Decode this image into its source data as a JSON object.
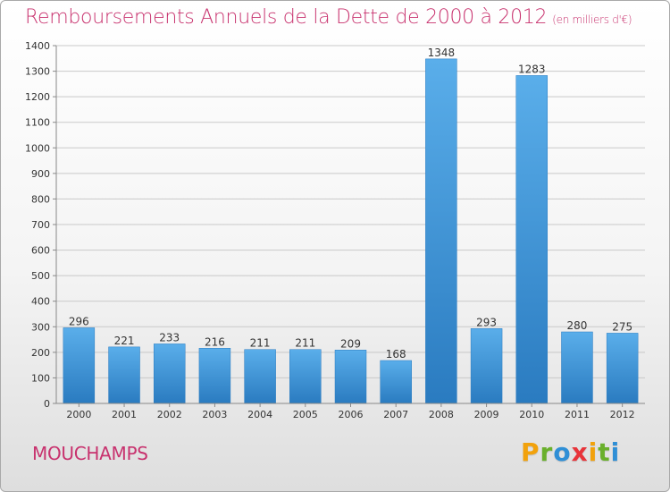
{
  "chart_data": {
    "type": "bar",
    "title": "Remboursements Annuels de la Dette de 2000 à 2012",
    "subtitle": "(en milliers d'€)",
    "categories": [
      "2000",
      "2001",
      "2002",
      "2003",
      "2004",
      "2005",
      "2006",
      "2007",
      "2008",
      "2009",
      "2010",
      "2011",
      "2012"
    ],
    "values": [
      296,
      221,
      233,
      216,
      211,
      211,
      209,
      168,
      1348,
      293,
      1283,
      280,
      275
    ],
    "ylim": [
      0,
      1400
    ],
    "yticks": [
      0,
      100,
      200,
      300,
      400,
      500,
      600,
      700,
      800,
      900,
      1000,
      1100,
      1200,
      1300,
      1400
    ],
    "grid": true,
    "bar_color": "#3a8fd6"
  },
  "footer": {
    "city": "MOUCHAMPS",
    "brand_letters": [
      {
        "char": "P",
        "color": "#f2a20c"
      },
      {
        "char": "r",
        "color": "#6ab02c"
      },
      {
        "char": "o",
        "color": "#2f8fd6"
      },
      {
        "char": "x",
        "color": "#e8343a"
      },
      {
        "char": "i",
        "color": "#f2a20c"
      },
      {
        "char": "t",
        "color": "#6ab02c"
      },
      {
        "char": "i",
        "color": "#2f8fd6"
      }
    ]
  }
}
